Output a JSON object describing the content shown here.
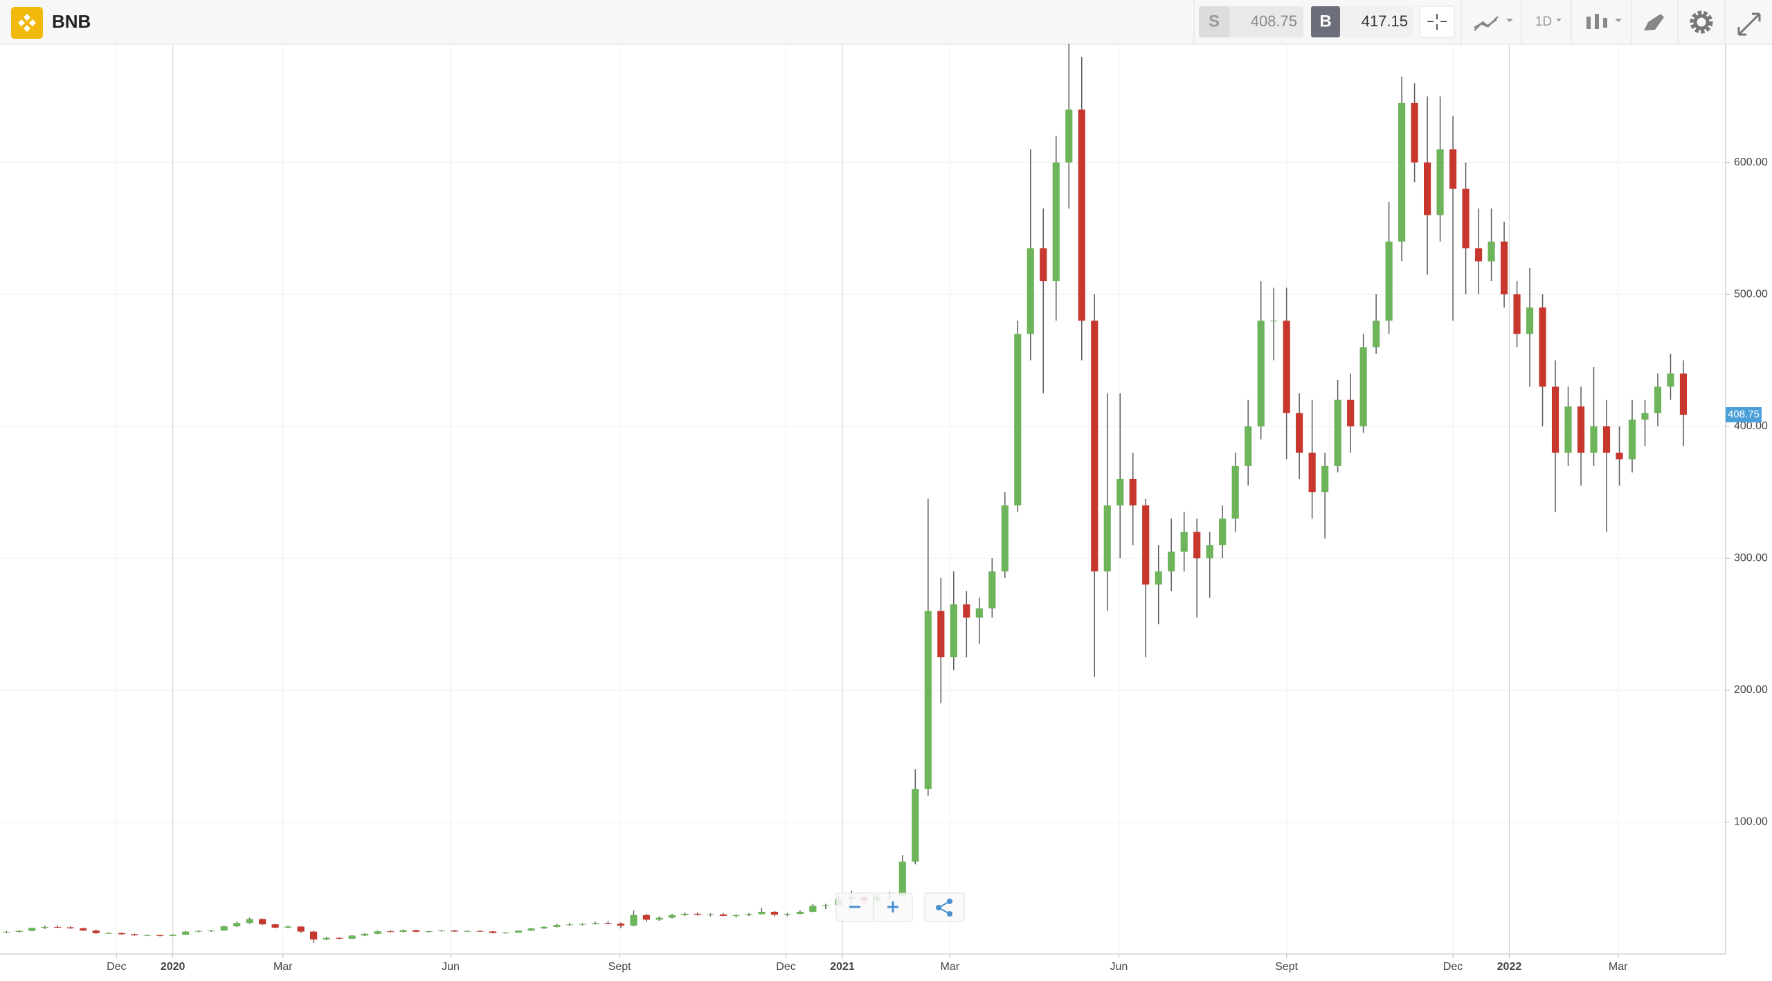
{
  "header": {
    "symbol": "BNB",
    "sell": {
      "label": "S",
      "price": "408.75"
    },
    "buy": {
      "label": "B",
      "price": "417.15"
    },
    "interval": "1D"
  },
  "chart_data": {
    "type": "candlestick",
    "open": [
      16.5,
      16.8,
      17.5,
      19.8,
      20.5,
      20.2,
      19.5,
      17.8,
      15.8,
      15.9,
      15,
      14.2,
      14.3,
      13.7,
      14.6,
      17,
      17.5,
      17.8,
      21,
      23.5,
      26.5,
      22.5,
      20,
      20.8,
      17,
      11,
      12.2,
      11.6,
      14,
      15.3,
      17.2,
      16.8,
      18,
      16.9,
      17.3,
      17.8,
      17.1,
      17.5,
      17.1,
      15.9,
      16.2,
      17.7,
      19.4,
      20.5,
      22,
      22.4,
      22.8,
      23.6,
      23,
      21.5,
      29.5,
      26,
      27.5,
      29.5,
      30.5,
      29.7,
      30,
      28.9,
      29.5,
      30.2,
      32,
      29.8,
      30.4,
      32,
      36.5,
      37,
      41.5,
      43,
      40.5,
      43.5,
      44,
      70,
      125,
      260,
      225,
      265,
      255,
      262,
      290,
      340,
      470,
      535,
      510,
      600,
      640,
      480,
      290,
      340,
      360,
      340,
      280,
      290,
      305,
      320,
      300,
      310,
      330,
      370,
      400,
      480,
      480,
      410,
      380,
      350,
      370,
      420,
      400,
      460,
      480,
      540,
      645,
      600,
      560,
      610,
      580,
      535,
      525,
      540,
      500,
      470,
      490,
      430,
      380,
      415,
      380,
      400,
      380,
      375,
      405,
      410,
      430,
      440
    ],
    "high": [
      17.5,
      18,
      20,
      21.5,
      21.8,
      21,
      20,
      18.4,
      16.5,
      16.2,
      15.4,
      14.8,
      14.6,
      15,
      17.5,
      18,
      18.2,
      21.5,
      24.5,
      27.5,
      27,
      23,
      21.5,
      21,
      17.5,
      13,
      12.8,
      14.2,
      15.8,
      17.8,
      18.2,
      18.6,
      18.4,
      17.6,
      18.2,
      18.2,
      17.8,
      17.9,
      17.5,
      16.6,
      18,
      19.8,
      21,
      23,
      23.5,
      23.2,
      24.5,
      25,
      24,
      33,
      30.5,
      28.5,
      30.5,
      31.5,
      31.5,
      30.8,
      31,
      30,
      31,
      35,
      32.6,
      31,
      33,
      38,
      38,
      43,
      48,
      45,
      45,
      47,
      75,
      140,
      345,
      285,
      290,
      275,
      270,
      300,
      350,
      480,
      610,
      565,
      620,
      690,
      680,
      500,
      425,
      425,
      380,
      345,
      310,
      330,
      335,
      330,
      320,
      340,
      380,
      420,
      510,
      505,
      505,
      425,
      420,
      380,
      435,
      440,
      470,
      500,
      570,
      665,
      660,
      650,
      650,
      635,
      600,
      565,
      565,
      555,
      510,
      520,
      500,
      450,
      430,
      430,
      445,
      420,
      400,
      420,
      420,
      440,
      455,
      450
    ],
    "low": [
      15.8,
      16.3,
      17.2,
      19,
      19.6,
      19,
      17.5,
      15.3,
      15.2,
      14.6,
      13.8,
      13.5,
      13.3,
      13.5,
      14.4,
      16.5,
      16.8,
      17.5,
      20.5,
      22.8,
      22,
      19.5,
      19.5,
      16,
      8.5,
      10.5,
      11.2,
      11.4,
      13.6,
      15,
      16.5,
      16.3,
      16.6,
      16.2,
      17,
      16.8,
      16.7,
      16.8,
      15.6,
      15.4,
      16,
      17.4,
      19,
      20.1,
      21.2,
      21.6,
      22.3,
      22.6,
      19.5,
      21,
      24.5,
      25.2,
      27,
      28.8,
      29.2,
      28.5,
      28.6,
      27.6,
      28.8,
      29.8,
      28.5,
      28.6,
      30,
      31.6,
      34,
      36.5,
      38,
      38.5,
      39.5,
      41,
      43,
      68,
      120,
      190,
      215,
      225,
      235,
      255,
      285,
      335,
      450,
      425,
      480,
      565,
      450,
      210,
      260,
      300,
      310,
      225,
      250,
      275,
      290,
      255,
      270,
      300,
      320,
      355,
      390,
      450,
      375,
      360,
      330,
      315,
      365,
      380,
      395,
      455,
      470,
      525,
      585,
      515,
      540,
      480,
      500,
      500,
      510,
      490,
      460,
      430,
      400,
      335,
      370,
      355,
      370,
      320,
      355,
      365,
      385,
      400,
      420,
      385
    ],
    "close": [
      16.8,
      17.5,
      19.8,
      20.5,
      20.2,
      19.5,
      17.8,
      15.8,
      15.9,
      15,
      14.2,
      14.3,
      13.7,
      14.6,
      17,
      17.5,
      17.8,
      21,
      23.5,
      26.5,
      22.5,
      20,
      20.8,
      17,
      11,
      12.2,
      11.6,
      14,
      15.3,
      17.2,
      16.8,
      18,
      16.9,
      17.3,
      17.8,
      17.1,
      17.5,
      17.1,
      15.9,
      16.2,
      17.7,
      19.4,
      20.5,
      22,
      22.4,
      22.8,
      23.6,
      23,
      21.5,
      29.5,
      26,
      27.5,
      29.5,
      30.5,
      29.7,
      30,
      28.9,
      29.5,
      30.2,
      32,
      29.8,
      30.4,
      32,
      36.5,
      37,
      41.5,
      43,
      40.5,
      43.5,
      44,
      70,
      125,
      260,
      225,
      265,
      255,
      262,
      290,
      340,
      470,
      535,
      510,
      600,
      640,
      480,
      290,
      340,
      360,
      340,
      280,
      290,
      305,
      320,
      300,
      310,
      330,
      370,
      400,
      480,
      480,
      410,
      380,
      350,
      370,
      420,
      400,
      460,
      480,
      540,
      645,
      600,
      560,
      610,
      580,
      535,
      525,
      540,
      500,
      470,
      490,
      430,
      380,
      415,
      380,
      400,
      380,
      375,
      405,
      410,
      430,
      440,
      408.75
    ],
    "up_color": "#6db45a",
    "down_color": "#c8372d",
    "wick_color": "#5a5a5a",
    "xlim": [
      -0.5,
      134.3
    ],
    "xticks": [
      {
        "value": 8.6,
        "label": "Dec"
      },
      {
        "value": 13,
        "label": "2020"
      },
      {
        "value": 21.6,
        "label": "Mar"
      },
      {
        "value": 34.7,
        "label": "Jun"
      },
      {
        "value": 47.9,
        "label": "Sept"
      },
      {
        "value": 60.9,
        "label": "Dec"
      },
      {
        "value": 65.3,
        "label": "2021"
      },
      {
        "value": 73.7,
        "label": "Mar"
      },
      {
        "value": 86.9,
        "label": "Jun"
      },
      {
        "value": 100,
        "label": "Sept"
      },
      {
        "value": 113,
        "label": "Dec"
      },
      {
        "value": 117.4,
        "label": "2022"
      },
      {
        "value": 125.9,
        "label": "Mar"
      }
    ],
    "ylim": [
      0,
      689
    ],
    "yticks": [
      {
        "value": 100,
        "label": "100.00"
      },
      {
        "value": 200,
        "label": "200.00"
      },
      {
        "value": 300,
        "label": "300.00"
      },
      {
        "value": 400,
        "label": "400.00"
      },
      {
        "value": 500,
        "label": "500.00"
      },
      {
        "value": 600,
        "label": "600.00"
      }
    ],
    "grid": true
  }
}
